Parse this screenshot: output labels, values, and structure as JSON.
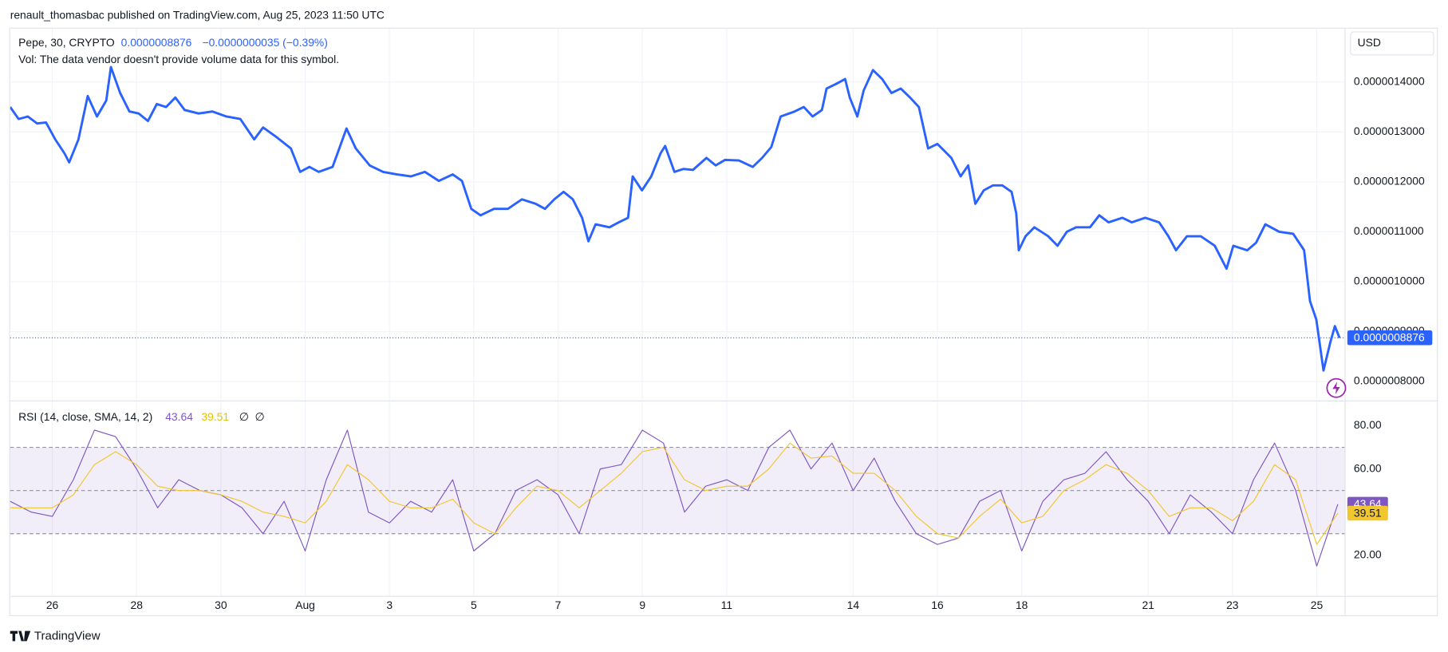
{
  "header": "renault_thomasbac published on TradingView.com, Aug 25, 2023 11:50 UTC",
  "footer": "TradingView",
  "currency": "USD",
  "chart_data": [
    {
      "type": "line",
      "symbol": "Pepe, 30, CRYPTO",
      "change_label": "−0.0000000035 (−0.39%)",
      "note": "Vol: The data vendor doesn't provide volume data for this symbol.",
      "last_price": {
        "value": 8.876e-07,
        "label": "0.0000008876"
      },
      "x": [
        0,
        0.2,
        0.42,
        0.64,
        0.85,
        1.07,
        1.29,
        1.4,
        1.62,
        1.84,
        2.06,
        2.28,
        2.39,
        2.61,
        2.83,
        3.05,
        3.27,
        3.48,
        3.7,
        3.92,
        4.14,
        4.47,
        4.8,
        5.13,
        5.46,
        5.79,
        6.0,
        6.33,
        6.66,
        6.88,
        7.1,
        7.32,
        7.65,
        7.98,
        8.2,
        8.53,
        8.85,
        9.18,
        9.51,
        9.84,
        10.17,
        10.5,
        10.72,
        10.94,
        11.16,
        11.48,
        11.81,
        12.14,
        12.47,
        12.69,
        12.91,
        13.13,
        13.35,
        13.57,
        13.72,
        13.89,
        14.22,
        14.44,
        14.66,
        14.77,
        14.99,
        15.21,
        15.43,
        15.54,
        15.76,
        15.98,
        16.2,
        16.52,
        16.74,
        16.96,
        17.29,
        17.62,
        17.84,
        18.06,
        18.28,
        18.61,
        18.83,
        19.04,
        19.26,
        19.37,
        19.59,
        19.81,
        19.92,
        20.1,
        20.25,
        20.47,
        20.69,
        20.91,
        21.13,
        21.35,
        21.56,
        21.78,
        22.0,
        22.33,
        22.55,
        22.73,
        22.9,
        23.1,
        23.32,
        23.54,
        23.76,
        23.87,
        23.93,
        24.09,
        24.3,
        24.63,
        24.85,
        25.07,
        25.29,
        25.62,
        25.84,
        26.06,
        26.39,
        26.61,
        26.93,
        27.26,
        27.48,
        27.66,
        27.92,
        28.25,
        28.58,
        28.86,
        29.02,
        29.35,
        29.56,
        29.78,
        30.11,
        30.44,
        30.7,
        30.84,
        30.99,
        31.16,
        31.32,
        31.43,
        31.54
      ],
      "series": [
        {
          "color": "#2962ff",
          "values": [
            1.35e-06,
            1.326e-06,
            1.331e-06,
            1.317e-06,
            1.319e-06,
            1.285e-06,
            1.257e-06,
            1.239e-06,
            1.285e-06,
            1.372e-06,
            1.331e-06,
            1.363e-06,
            1.43e-06,
            1.378e-06,
            1.341e-06,
            1.337e-06,
            1.322e-06,
            1.356e-06,
            1.35e-06,
            1.369e-06,
            1.344e-06,
            1.337e-06,
            1.341e-06,
            1.331e-06,
            1.326e-06,
            1.285e-06,
            1.309e-06,
            1.289e-06,
            1.267e-06,
            1.22e-06,
            1.23e-06,
            1.22e-06,
            1.23e-06,
            1.307e-06,
            1.267e-06,
            1.233e-06,
            1.22e-06,
            1.215e-06,
            1.211e-06,
            1.22e-06,
            1.202e-06,
            1.215e-06,
            1.202e-06,
            1.146e-06,
            1.133e-06,
            1.146e-06,
            1.146e-06,
            1.165e-06,
            1.156e-06,
            1.146e-06,
            1.165e-06,
            1.18e-06,
            1.165e-06,
            1.128e-06,
            1.081e-06,
            1.115e-06,
            1.109e-06,
            1.119e-06,
            1.128e-06,
            1.211e-06,
            1.183e-06,
            1.211e-06,
            1.257e-06,
            1.272e-06,
            1.22e-06,
            1.226e-06,
            1.224e-06,
            1.248e-06,
            1.233e-06,
            1.244e-06,
            1.243e-06,
            1.23e-06,
            1.248e-06,
            1.27e-06,
            1.331e-06,
            1.341e-06,
            1.35e-06,
            1.331e-06,
            1.344e-06,
            1.387e-06,
            1.396e-06,
            1.406e-06,
            1.369e-06,
            1.331e-06,
            1.383e-06,
            1.424e-06,
            1.406e-06,
            1.378e-06,
            1.387e-06,
            1.369e-06,
            1.35e-06,
            1.267e-06,
            1.276e-06,
            1.248e-06,
            1.211e-06,
            1.233e-06,
            1.156e-06,
            1.183e-06,
            1.193e-06,
            1.193e-06,
            1.18e-06,
            1.137e-06,
            1.063e-06,
            1.091e-06,
            1.109e-06,
            1.091e-06,
            1.072e-06,
            1.1e-06,
            1.109e-06,
            1.109e-06,
            1.133e-06,
            1.119e-06,
            1.128e-06,
            1.119e-06,
            1.128e-06,
            1.119e-06,
            1.091e-06,
            1.063e-06,
            1.091e-06,
            1.091e-06,
            1.072e-06,
            1.026e-06,
            1.072e-06,
            1.063e-06,
            1.078e-06,
            1.115e-06,
            1.1e-06,
            1.096e-06,
            1.063e-06,
            9.61e-07,
            9.24e-07,
            8.22e-07,
            8.78e-07,
            9.11e-07,
            8.876e-07
          ]
        }
      ],
      "xlim": [
        0,
        31.66
      ],
      "xticks": [
        {
          "value": 1,
          "label": "26"
        },
        {
          "value": 3,
          "label": "28"
        },
        {
          "value": 5,
          "label": "30"
        },
        {
          "value": 7,
          "label": "Aug"
        },
        {
          "value": 9,
          "label": "3"
        },
        {
          "value": 11,
          "label": "5"
        },
        {
          "value": 13,
          "label": "7"
        },
        {
          "value": 15,
          "label": "9"
        },
        {
          "value": 17,
          "label": "11"
        },
        {
          "value": 20,
          "label": "14"
        },
        {
          "value": 22,
          "label": "16"
        },
        {
          "value": 24,
          "label": "18"
        },
        {
          "value": 27,
          "label": "21"
        },
        {
          "value": 29,
          "label": "23"
        },
        {
          "value": 31,
          "label": "25"
        }
      ],
      "ylim": [
        7.63e-07,
        1.507e-06
      ],
      "yticks": [
        {
          "value": 1.4e-06,
          "label": "0.0000014000"
        },
        {
          "value": 1.3e-06,
          "label": "0.0000013000"
        },
        {
          "value": 1.2e-06,
          "label": "0.0000012000"
        },
        {
          "value": 1.1e-06,
          "label": "0.0000011000"
        },
        {
          "value": 1e-06,
          "label": "0.0000010000"
        },
        {
          "value": 9e-07,
          "label": "0.0000009000"
        },
        {
          "value": 8e-07,
          "label": "0.0000008000"
        }
      ],
      "grid": true
    },
    {
      "type": "line",
      "title": "RSI (14, close, SMA, 14, 2)",
      "placeholders": [
        "∅",
        "∅"
      ],
      "x": [
        0,
        0.5,
        1,
        1.5,
        2,
        2.5,
        3,
        3.5,
        4,
        4.5,
        5,
        5.5,
        6,
        6.5,
        7,
        7.5,
        8,
        8.5,
        9,
        9.5,
        10,
        10.5,
        11,
        11.5,
        12,
        12.5,
        13,
        13.5,
        14,
        14.5,
        15,
        15.5,
        16,
        16.5,
        17,
        17.5,
        18,
        18.5,
        19,
        19.5,
        20,
        20.5,
        21,
        21.5,
        22,
        22.5,
        23,
        23.5,
        24,
        24.5,
        25,
        25.5,
        26,
        26.5,
        27,
        27.5,
        28,
        28.5,
        29,
        29.5,
        30,
        30.5,
        31,
        31.5
      ],
      "series": [
        {
          "color": "#7e57c2",
          "values": [
            45,
            40,
            38,
            55,
            78,
            75,
            60,
            42,
            55,
            50,
            48,
            42,
            30,
            45,
            22,
            55,
            78,
            40,
            35,
            45,
            40,
            55,
            22,
            30,
            50,
            55,
            48,
            30,
            60,
            62,
            78,
            72,
            40,
            52,
            55,
            50,
            70,
            78,
            60,
            72,
            50,
            65,
            45,
            30,
            25,
            28,
            45,
            50,
            22,
            45,
            55,
            58,
            68,
            55,
            45,
            30,
            48,
            40,
            30,
            55,
            72,
            50,
            15,
            43.64
          ]
        },
        {
          "color": "#f2c62f",
          "values": [
            42,
            42,
            42,
            48,
            62,
            68,
            62,
            52,
            50,
            50,
            48,
            45,
            40,
            38,
            35,
            45,
            62,
            55,
            45,
            42,
            42,
            46,
            35,
            30,
            42,
            52,
            50,
            42,
            50,
            58,
            68,
            70,
            55,
            50,
            52,
            52,
            60,
            72,
            65,
            66,
            58,
            58,
            50,
            38,
            30,
            28,
            38,
            46,
            35,
            38,
            50,
            55,
            62,
            58,
            50,
            38,
            42,
            42,
            36,
            45,
            62,
            55,
            25,
            39.51
          ]
        }
      ],
      "xlim": [
        0,
        31.66
      ],
      "ylim": [
        1.2,
        91.1
      ],
      "yticks": [
        {
          "value": 80,
          "label": "80.00"
        },
        {
          "value": 60,
          "label": "60.00"
        },
        {
          "value": 20,
          "label": "20.00"
        }
      ],
      "band": [
        30,
        70
      ],
      "midline": 50
    }
  ]
}
